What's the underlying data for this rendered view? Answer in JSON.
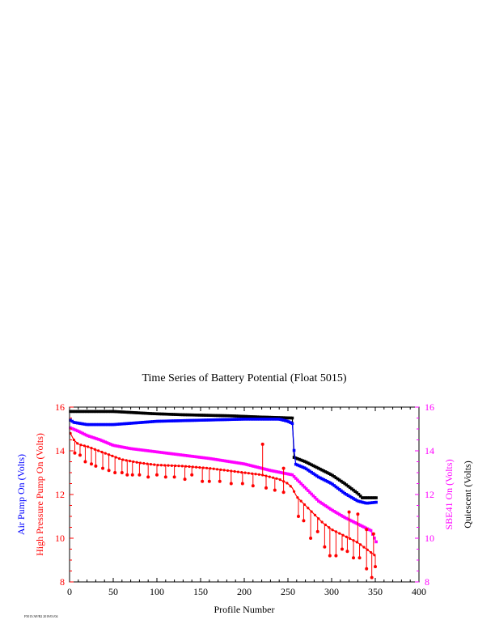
{
  "chart_data": {
    "type": "line",
    "title": "Time Series of Battery Potential (Float 5015)",
    "xlabel": "Profile Number",
    "xlim": [
      0,
      400
    ],
    "xticks": [
      "0",
      "50",
      "100",
      "150",
      "200",
      "250",
      "300",
      "350",
      "400"
    ],
    "ylim": [
      8,
      16
    ],
    "yticks": [
      "8",
      "10",
      "12",
      "14",
      "16"
    ],
    "left_axis_labels": [
      {
        "text": "Air Pump On (Volts)",
        "color": "#0000ff"
      },
      {
        "text": "High Pressure Pump On (Volts)",
        "color": "#ff0000"
      }
    ],
    "right_axis_labels": [
      {
        "text": "SBE41 On (Volts)",
        "color": "#ff00ff"
      },
      {
        "text": "Quiescent (Volts)",
        "color": "#000000"
      }
    ],
    "footer": "F5015/AP/R2 2019/01/04",
    "grid": false,
    "series": [
      {
        "name": "Quiescent (Volts)",
        "color": "#000000",
        "x": [
          1,
          50,
          95,
          130,
          185,
          215,
          255,
          257,
          270,
          285,
          300,
          315,
          330,
          335,
          352
        ],
        "y": [
          15.8,
          15.8,
          15.7,
          15.65,
          15.6,
          15.55,
          15.5,
          13.7,
          13.5,
          13.2,
          12.9,
          12.5,
          12.05,
          11.85,
          11.85
        ]
      },
      {
        "name": "Air Pump On (Volts)",
        "color": "#0000ff",
        "x": [
          1,
          5,
          20,
          50,
          100,
          150,
          200,
          240,
          250,
          255,
          258,
          270,
          285,
          300,
          315,
          330,
          340,
          352
        ],
        "y": [
          15.4,
          15.3,
          15.2,
          15.2,
          15.35,
          15.4,
          15.45,
          15.45,
          15.35,
          15.25,
          13.4,
          13.2,
          12.8,
          12.5,
          12.05,
          11.7,
          11.6,
          11.65
        ]
      },
      {
        "name": "SBE41 On (Volts)",
        "color": "#ff00ff",
        "x": [
          1,
          10,
          20,
          35,
          50,
          70,
          100,
          130,
          160,
          200,
          230,
          255,
          270,
          285,
          300,
          315,
          330,
          345,
          352
        ],
        "y": [
          15.05,
          14.9,
          14.7,
          14.5,
          14.25,
          14.1,
          13.95,
          13.8,
          13.65,
          13.4,
          13.1,
          12.9,
          12.3,
          11.7,
          11.3,
          10.95,
          10.65,
          10.35,
          9.75
        ]
      },
      {
        "name": "High Pressure Pump On (Volts)",
        "color": "#ff0000",
        "x": [
          1,
          5,
          10,
          20,
          40,
          60,
          80,
          100,
          130,
          160,
          190,
          220,
          240,
          250,
          255,
          260,
          270,
          280,
          290,
          300,
          310,
          320,
          330,
          340,
          350
        ],
        "y": [
          14.8,
          14.5,
          14.3,
          14.2,
          13.9,
          13.6,
          13.45,
          13.35,
          13.3,
          13.2,
          13.05,
          12.9,
          12.7,
          12.5,
          12.3,
          11.9,
          11.5,
          11.1,
          10.7,
          10.4,
          10.2,
          10.0,
          9.8,
          9.5,
          9.2
        ]
      }
    ],
    "hp_dips": [
      [
        6,
        13.9
      ],
      [
        12,
        13.8
      ],
      [
        18,
        13.5
      ],
      [
        25,
        13.4
      ],
      [
        30,
        13.3
      ],
      [
        38,
        13.2
      ],
      [
        45,
        13.1
      ],
      [
        52,
        13.0
      ],
      [
        60,
        13.0
      ],
      [
        66,
        12.9
      ],
      [
        72,
        12.9
      ],
      [
        80,
        12.9
      ],
      [
        90,
        12.8
      ],
      [
        100,
        12.9
      ],
      [
        110,
        12.8
      ],
      [
        120,
        12.8
      ],
      [
        132,
        12.7
      ],
      [
        140,
        12.9
      ],
      [
        152,
        12.6
      ],
      [
        160,
        12.6
      ],
      [
        172,
        12.6
      ],
      [
        185,
        12.5
      ],
      [
        198,
        12.5
      ],
      [
        210,
        12.4
      ],
      [
        225,
        12.3
      ],
      [
        235,
        12.2
      ],
      [
        245,
        12.1
      ],
      [
        262,
        11.0
      ],
      [
        268,
        10.8
      ],
      [
        276,
        10.0
      ],
      [
        284,
        10.3
      ],
      [
        292,
        9.6
      ],
      [
        298,
        9.2
      ],
      [
        305,
        9.2
      ],
      [
        312,
        9.5
      ],
      [
        318,
        9.4
      ],
      [
        325,
        9.1
      ],
      [
        332,
        9.1
      ],
      [
        340,
        8.6
      ],
      [
        346,
        8.2
      ],
      [
        350,
        8.7
      ]
    ],
    "hp_spikes": [
      [
        221,
        14.3
      ],
      [
        245,
        13.2
      ],
      [
        320,
        11.2
      ],
      [
        330,
        11.1
      ],
      [
        340,
        10.4
      ],
      [
        348,
        10.2
      ]
    ]
  }
}
